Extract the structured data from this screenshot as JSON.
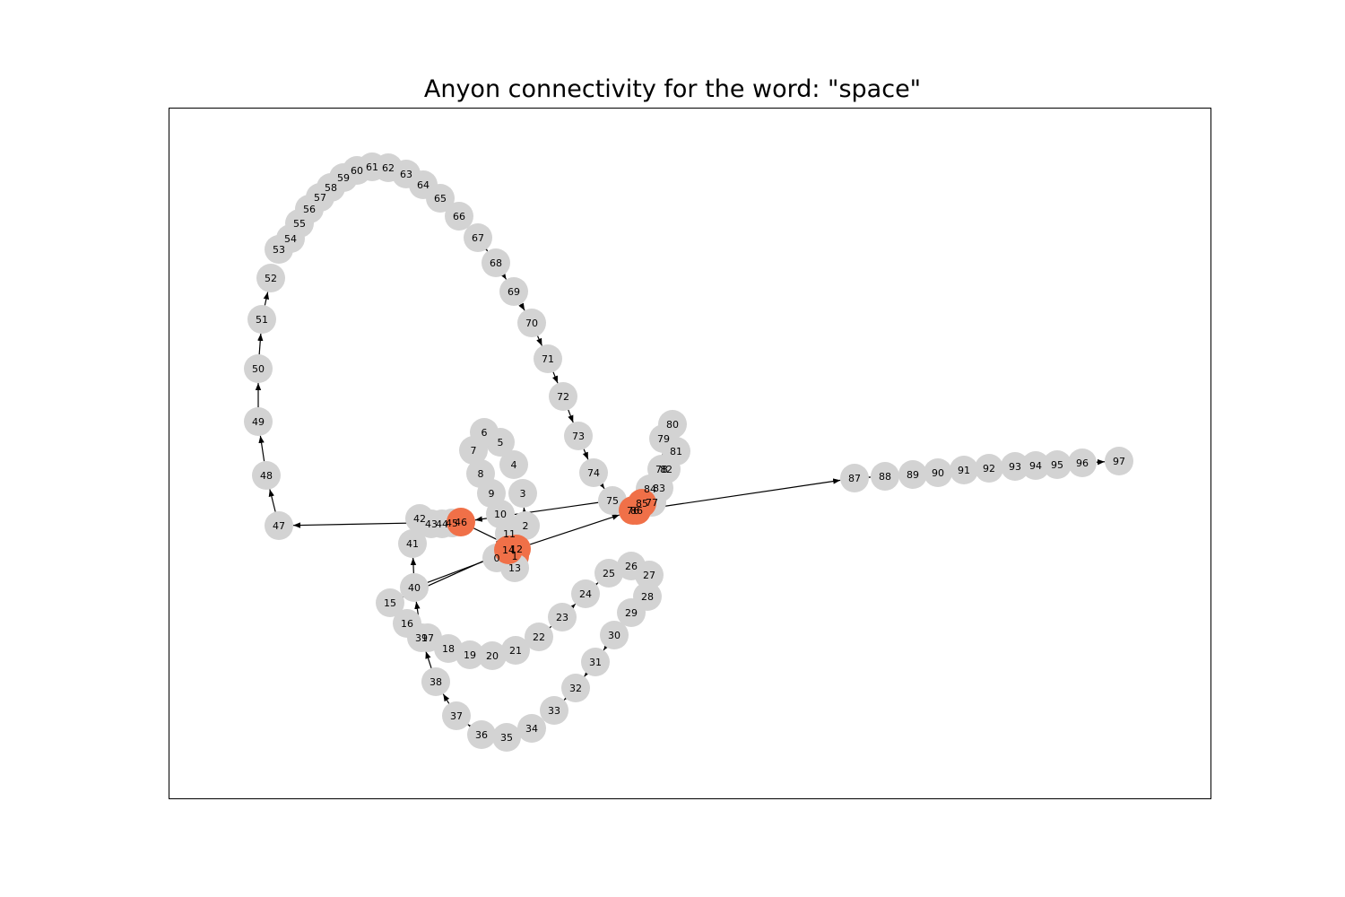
{
  "title": "Anyon connectivity for the word: \"space\"",
  "colors": {
    "node_default": "#d3d3d3",
    "node_highlight": "#f07048",
    "edge": "#000000",
    "frame": "#000000"
  },
  "highlighted_nodes": [
    "1",
    "12",
    "14",
    "46",
    "76",
    "85",
    "86"
  ],
  "nodes": [
    "0",
    "1",
    "2",
    "3",
    "4",
    "5",
    "6",
    "7",
    "8",
    "9",
    "10",
    "11",
    "12",
    "13",
    "14",
    "15",
    "16",
    "17",
    "18",
    "19",
    "20",
    "21",
    "22",
    "23",
    "24",
    "25",
    "26",
    "27",
    "28",
    "29",
    "30",
    "31",
    "32",
    "33",
    "34",
    "35",
    "36",
    "37",
    "38",
    "39",
    "40",
    "41",
    "42",
    "43",
    "44",
    "45",
    "46",
    "47",
    "48",
    "49",
    "50",
    "51",
    "52",
    "53",
    "54",
    "55",
    "56",
    "57",
    "58",
    "59",
    "60",
    "61",
    "62",
    "63",
    "64",
    "65",
    "66",
    "67",
    "68",
    "69",
    "70",
    "71",
    "72",
    "73",
    "74",
    "75",
    "76",
    "77",
    "78",
    "79",
    "80",
    "81",
    "82",
    "83",
    "84",
    "85",
    "86",
    "87",
    "88",
    "89",
    "90",
    "91",
    "92",
    "93",
    "94",
    "95",
    "96",
    "97"
  ],
  "edges": [
    [
      "0",
      "1"
    ],
    [
      "1",
      "2"
    ],
    [
      "2",
      "3"
    ],
    [
      "3",
      "4"
    ],
    [
      "4",
      "5"
    ],
    [
      "5",
      "6"
    ],
    [
      "6",
      "7"
    ],
    [
      "7",
      "8"
    ],
    [
      "8",
      "9"
    ],
    [
      "9",
      "10"
    ],
    [
      "10",
      "11"
    ],
    [
      "11",
      "12"
    ],
    [
      "12",
      "13"
    ],
    [
      "13",
      "14"
    ],
    [
      "14",
      "15"
    ],
    [
      "15",
      "16"
    ],
    [
      "16",
      "17"
    ],
    [
      "17",
      "18"
    ],
    [
      "18",
      "19"
    ],
    [
      "19",
      "20"
    ],
    [
      "20",
      "21"
    ],
    [
      "21",
      "22"
    ],
    [
      "22",
      "23"
    ],
    [
      "23",
      "24"
    ],
    [
      "24",
      "25"
    ],
    [
      "25",
      "26"
    ],
    [
      "26",
      "27"
    ],
    [
      "27",
      "28"
    ],
    [
      "28",
      "29"
    ],
    [
      "29",
      "30"
    ],
    [
      "30",
      "31"
    ],
    [
      "31",
      "32"
    ],
    [
      "32",
      "33"
    ],
    [
      "33",
      "34"
    ],
    [
      "34",
      "35"
    ],
    [
      "35",
      "36"
    ],
    [
      "36",
      "37"
    ],
    [
      "37",
      "38"
    ],
    [
      "38",
      "39"
    ],
    [
      "39",
      "40"
    ],
    [
      "40",
      "41"
    ],
    [
      "41",
      "42"
    ],
    [
      "42",
      "43"
    ],
    [
      "43",
      "44"
    ],
    [
      "44",
      "45"
    ],
    [
      "45",
      "46"
    ],
    [
      "46",
      "47"
    ],
    [
      "47",
      "48"
    ],
    [
      "48",
      "49"
    ],
    [
      "49",
      "50"
    ],
    [
      "50",
      "51"
    ],
    [
      "51",
      "52"
    ],
    [
      "52",
      "53"
    ],
    [
      "53",
      "54"
    ],
    [
      "54",
      "55"
    ],
    [
      "55",
      "56"
    ],
    [
      "56",
      "57"
    ],
    [
      "57",
      "58"
    ],
    [
      "58",
      "59"
    ],
    [
      "59",
      "60"
    ],
    [
      "60",
      "61"
    ],
    [
      "61",
      "62"
    ],
    [
      "62",
      "63"
    ],
    [
      "63",
      "64"
    ],
    [
      "64",
      "65"
    ],
    [
      "65",
      "66"
    ],
    [
      "66",
      "67"
    ],
    [
      "67",
      "68"
    ],
    [
      "68",
      "69"
    ],
    [
      "69",
      "70"
    ],
    [
      "70",
      "71"
    ],
    [
      "71",
      "72"
    ],
    [
      "72",
      "73"
    ],
    [
      "73",
      "74"
    ],
    [
      "74",
      "75"
    ],
    [
      "75",
      "76"
    ],
    [
      "76",
      "77"
    ],
    [
      "77",
      "78"
    ],
    [
      "78",
      "79"
    ],
    [
      "79",
      "80"
    ],
    [
      "80",
      "81"
    ],
    [
      "81",
      "82"
    ],
    [
      "82",
      "83"
    ],
    [
      "83",
      "84"
    ],
    [
      "84",
      "85"
    ],
    [
      "85",
      "86"
    ],
    [
      "86",
      "87"
    ],
    [
      "87",
      "88"
    ],
    [
      "88",
      "89"
    ],
    [
      "89",
      "90"
    ],
    [
      "90",
      "91"
    ],
    [
      "91",
      "92"
    ],
    [
      "92",
      "93"
    ],
    [
      "93",
      "94"
    ],
    [
      "94",
      "95"
    ],
    [
      "95",
      "96"
    ],
    [
      "96",
      "97"
    ],
    [
      "40",
      "12"
    ],
    [
      "75",
      "46"
    ],
    [
      "12",
      "76"
    ],
    [
      "46",
      "12"
    ]
  ]
}
